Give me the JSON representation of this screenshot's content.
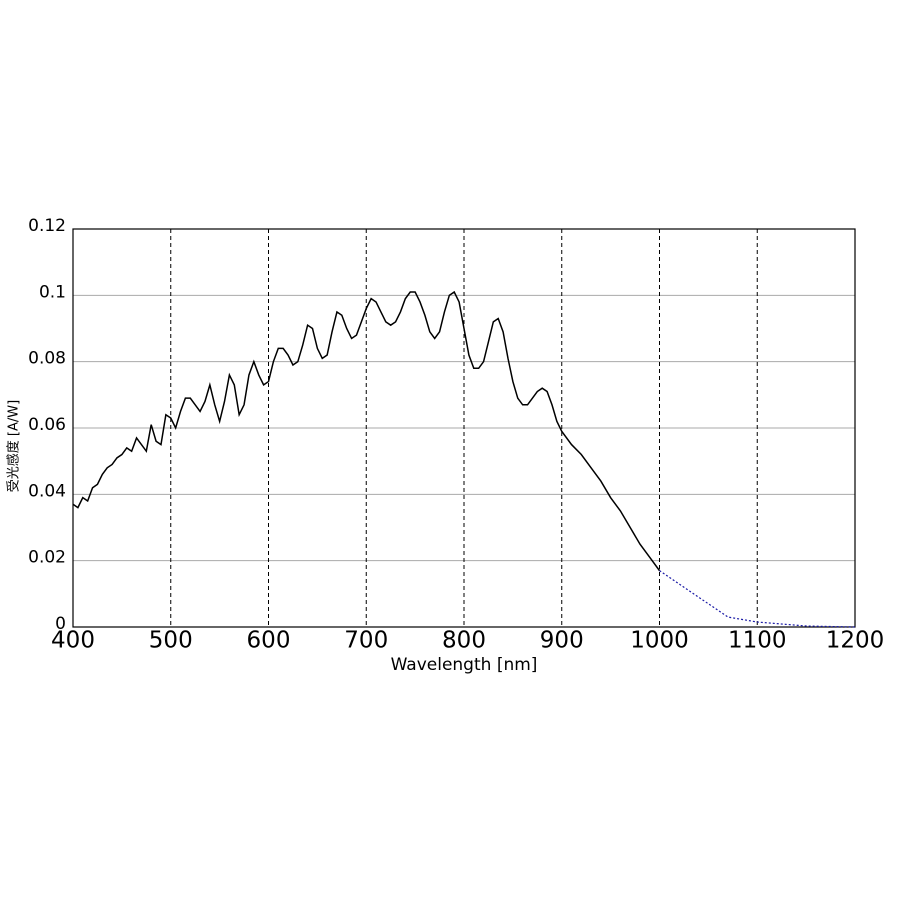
{
  "chart_data": {
    "type": "line",
    "xlabel": "Wavelength [nm]",
    "ylabel": "受光感度 [A/W]",
    "xlim": [
      400,
      1200
    ],
    "xticks": [
      400,
      500,
      600,
      700,
      800,
      900,
      1000,
      1100,
      1200
    ],
    "ylim": [
      0,
      0.12
    ],
    "yticks": [
      0,
      0.02,
      0.04,
      0.06,
      0.08,
      0.1,
      0.12
    ],
    "grid": true,
    "series": [
      {
        "color": "#000000",
        "dashed": false,
        "x": [
          400,
          405,
          410,
          415,
          420,
          425,
          430,
          435,
          440,
          445,
          450,
          455,
          460,
          465,
          470,
          475,
          480,
          485,
          490,
          495,
          500,
          505,
          510,
          515,
          520,
          525,
          530,
          535,
          540,
          545,
          550,
          555,
          560,
          565,
          570,
          575,
          580,
          585,
          590,
          595,
          600,
          605,
          610,
          615,
          620,
          625,
          630,
          635,
          640,
          645,
          650,
          655,
          660,
          665,
          670,
          675,
          680,
          685,
          690,
          695,
          700,
          705,
          710,
          715,
          720,
          725,
          730,
          735,
          740,
          745,
          750,
          755,
          760,
          765,
          770,
          775,
          780,
          785,
          790,
          795,
          800,
          805,
          810,
          815,
          820,
          825,
          830,
          835,
          840,
          845,
          850,
          855,
          860,
          865,
          870,
          875,
          880,
          885,
          890,
          895,
          900,
          910,
          920,
          930,
          940,
          950,
          960,
          970,
          980,
          990,
          1000
        ],
        "values": [
          0.037,
          0.036,
          0.039,
          0.038,
          0.042,
          0.043,
          0.046,
          0.048,
          0.049,
          0.051,
          0.052,
          0.054,
          0.053,
          0.057,
          0.055,
          0.053,
          0.061,
          0.056,
          0.055,
          0.064,
          0.063,
          0.06,
          0.065,
          0.069,
          0.069,
          0.067,
          0.065,
          0.068,
          0.073,
          0.067,
          0.062,
          0.068,
          0.076,
          0.073,
          0.064,
          0.067,
          0.076,
          0.08,
          0.076,
          0.073,
          0.074,
          0.08,
          0.084,
          0.084,
          0.082,
          0.079,
          0.08,
          0.085,
          0.091,
          0.09,
          0.084,
          0.081,
          0.082,
          0.089,
          0.095,
          0.094,
          0.09,
          0.087,
          0.088,
          0.092,
          0.096,
          0.099,
          0.098,
          0.095,
          0.092,
          0.091,
          0.092,
          0.095,
          0.099,
          0.101,
          0.101,
          0.098,
          0.094,
          0.089,
          0.087,
          0.089,
          0.095,
          0.1,
          0.101,
          0.098,
          0.09,
          0.082,
          0.078,
          0.078,
          0.08,
          0.086,
          0.092,
          0.093,
          0.089,
          0.081,
          0.074,
          0.069,
          0.067,
          0.067,
          0.069,
          0.071,
          0.072,
          0.071,
          0.067,
          0.062,
          0.059,
          0.055,
          0.052,
          0.048,
          0.044,
          0.039,
          0.035,
          0.03,
          0.025,
          0.021,
          0.017
        ]
      },
      {
        "color": "#1a1aa6",
        "dashed": true,
        "x": [
          1000,
          1040,
          1070,
          1100,
          1150,
          1200
        ],
        "values": [
          0.017,
          0.009,
          0.003,
          0.0015,
          0.0003,
          0
        ]
      }
    ]
  }
}
